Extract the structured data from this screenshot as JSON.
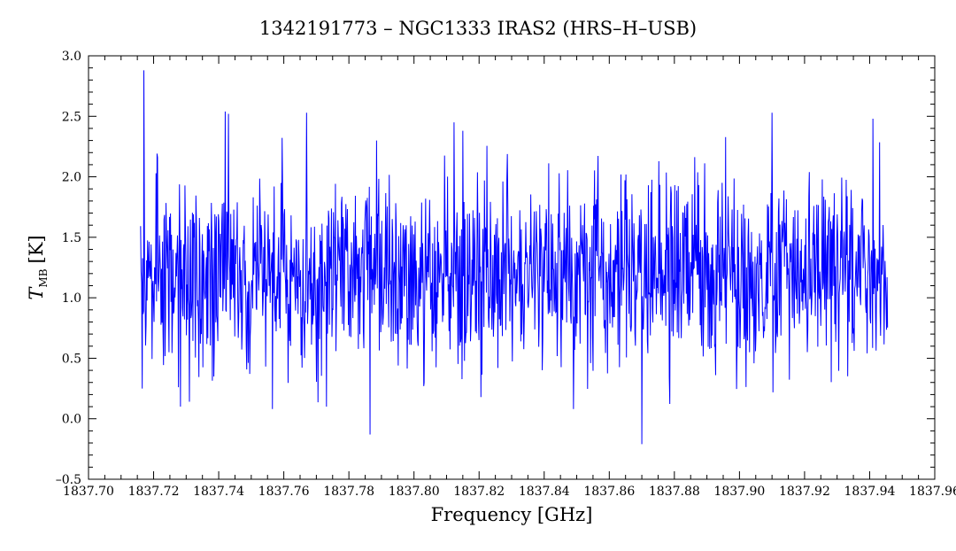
{
  "chart_data": {
    "type": "line",
    "title": "1342191773 – NGC1333 IRAS2 (HRS–H–USB)",
    "xlabel": "Frequency [GHz]",
    "ylabel_main": "T",
    "ylabel_sub": "MB",
    "ylabel_unit": "[K]",
    "xlim": [
      1837.7,
      1837.96
    ],
    "ylim": [
      -0.5,
      3.0
    ],
    "x_ticks": [
      1837.7,
      1837.72,
      1837.74,
      1837.76,
      1837.78,
      1837.8,
      1837.82,
      1837.84,
      1837.86,
      1837.88,
      1837.9,
      1837.92,
      1837.94,
      1837.96
    ],
    "x_tick_labels": [
      "1837.70",
      "1837.72",
      "1837.74",
      "1837.76",
      "1837.78",
      "1837.80",
      "1837.82",
      "1837.84",
      "1837.86",
      "1837.88",
      "1837.90",
      "1837.92",
      "1837.94",
      "1837.96"
    ],
    "y_ticks": [
      -0.5,
      0.0,
      0.5,
      1.0,
      1.5,
      2.0,
      2.5,
      3.0
    ],
    "y_tick_labels": [
      "–0.5",
      "0.0",
      "0.5",
      "1.0",
      "1.5",
      "2.0",
      "2.5",
      "3.0"
    ],
    "grid": false,
    "series": [
      {
        "color": "#0000ff",
        "x_start": 1837.716,
        "x_end": 1837.9455,
        "baseline": 1.2,
        "noise_sigma": 0.38,
        "n_points": 1500,
        "notable_points": [
          {
            "x": 1837.717,
            "y": 2.88
          },
          {
            "x": 1837.7165,
            "y": 0.25
          },
          {
            "x": 1837.742,
            "y": 2.54
          },
          {
            "x": 1837.743,
            "y": 2.52
          },
          {
            "x": 1837.767,
            "y": 2.53
          },
          {
            "x": 1837.7865,
            "y": -0.13
          },
          {
            "x": 1837.7885,
            "y": 2.3
          },
          {
            "x": 1837.815,
            "y": 2.38
          },
          {
            "x": 1837.87,
            "y": -0.21
          },
          {
            "x": 1837.91,
            "y": 2.53
          },
          {
            "x": 1837.941,
            "y": 2.48
          },
          {
            "x": 1837.803,
            "y": 0.27
          },
          {
            "x": 1837.849,
            "y": 0.08
          },
          {
            "x": 1837.7565,
            "y": 0.08
          }
        ]
      }
    ]
  }
}
